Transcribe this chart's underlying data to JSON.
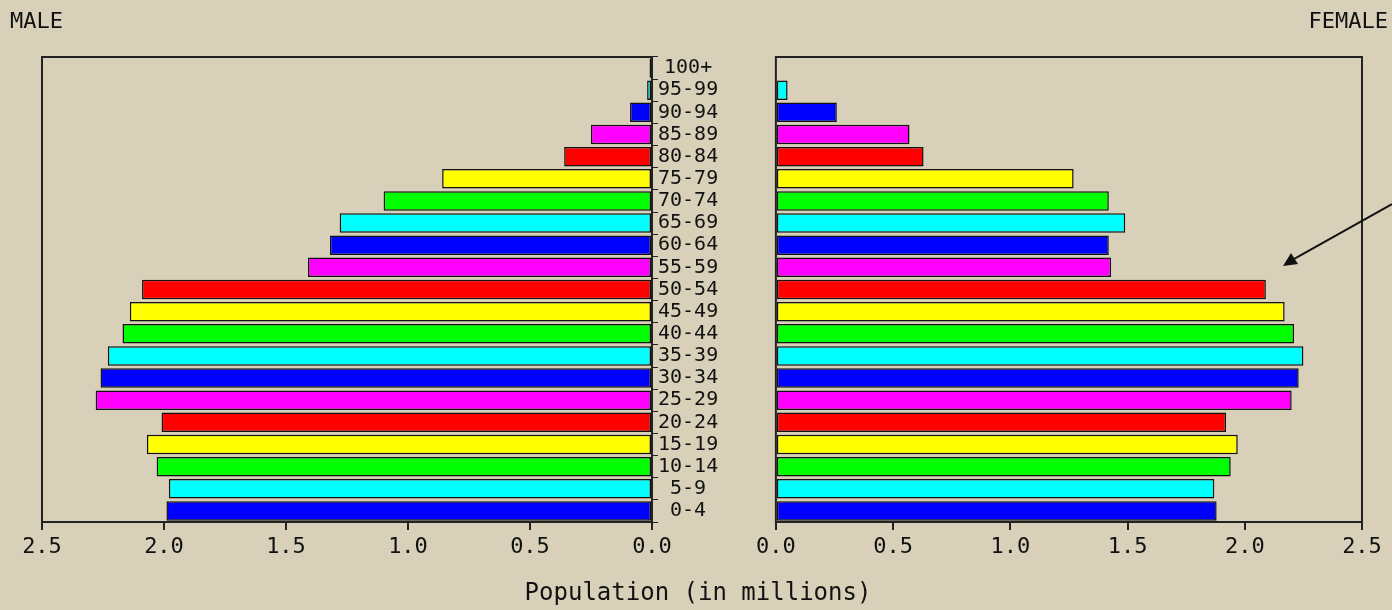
{
  "chart_data": [
    {
      "type": "bar",
      "orientation": "horizontal",
      "title": "MALE",
      "xlabel": "Population (in millions)",
      "grid": false,
      "categories": [
        "100+",
        "95-99",
        "90-94",
        "85-89",
        "80-84",
        "75-79",
        "70-74",
        "65-69",
        "60-64",
        "55-59",
        "50-54",
        "45-49",
        "40-44",
        "35-39",
        "30-34",
        "25-29",
        "20-24",
        "15-19",
        "10-14",
        "5-9",
        "0-4"
      ],
      "values": [
        0.01,
        0.02,
        0.09,
        0.25,
        0.36,
        0.86,
        1.1,
        1.28,
        1.32,
        1.41,
        2.09,
        2.14,
        2.17,
        2.23,
        2.26,
        2.28,
        2.01,
        2.07,
        2.03,
        1.98,
        1.99
      ],
      "colors": [
        "#111111",
        "#00ffff",
        "#0000ff",
        "#ff00ff",
        "#ff0000",
        "#ffff00",
        "#00ff00",
        "#00ffff",
        "#0000ff",
        "#ff00ff",
        "#ff0000",
        "#ffff00",
        "#00ff00",
        "#00ffff",
        "#0000ff",
        "#ff00ff",
        "#ff0000",
        "#ffff00",
        "#00ff00",
        "#00ffff",
        "#0000ff"
      ],
      "xlim": [
        2.5,
        0
      ],
      "xticks": [
        2.5,
        {
          "value": 2,
          "label": "2.0"
        },
        1.5,
        {
          "value": 1,
          "label": "1.0"
        },
        0.5,
        {
          "value": 0,
          "label": "0.0"
        }
      ]
    },
    {
      "type": "bar",
      "orientation": "horizontal",
      "title": "FEMALE",
      "grid": false,
      "tick_labels": "x",
      "categories": [
        null,
        null,
        null,
        null,
        null,
        null,
        null,
        null,
        null,
        null,
        null,
        null,
        null,
        null,
        null,
        null,
        null,
        null,
        null,
        null,
        null
      ],
      "values": [
        0,
        0.05,
        0.26,
        0.57,
        0.63,
        1.27,
        1.42,
        1.49,
        1.42,
        1.43,
        2.09,
        2.17,
        2.21,
        2.25,
        2.23,
        2.2,
        1.92,
        1.97,
        1.94,
        1.87,
        1.88
      ],
      "colors": [
        "#00ff00",
        "#00ffff",
        "#0000ff",
        "#ff00ff",
        "#ff0000",
        "#ffff00",
        "#00ff00",
        "#00ffff",
        "#0000ff",
        "#ff00ff",
        "#ff0000",
        "#ffff00",
        "#00ff00",
        "#00ffff",
        "#0000ff",
        "#ff00ff",
        "#ff0000",
        "#ffff00",
        "#00ff00",
        "#00ffff",
        "#0000ff"
      ],
      "xlim": [
        0,
        2.5
      ],
      "xticks": [
        {
          "value": 0,
          "label": "0.0"
        },
        0.5,
        {
          "value": 1,
          "label": "1.0"
        },
        1.5,
        {
          "value": 2,
          "label": "2.0"
        },
        2.5
      ]
    }
  ]
}
